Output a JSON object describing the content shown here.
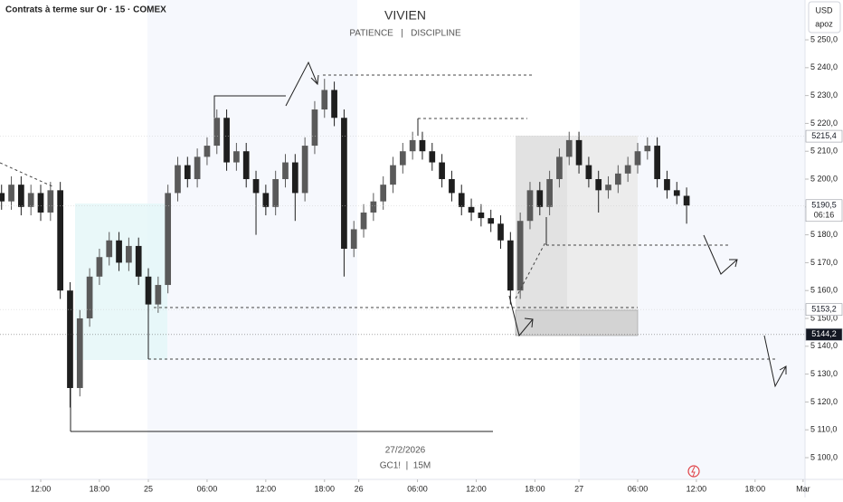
{
  "chart_data": {
    "type": "candlestick",
    "symbol_title": "Contrats à terme sur Or · 15 · COMEX",
    "title": "VIVIEN",
    "subtitle": "PATIENCE   |   DISCIPLINE",
    "date_label": "27/2/2026",
    "ticker_label": "GC1!  |  15M",
    "currency": "USD",
    "user": "apoz",
    "up_color": "#5a5a5a",
    "down_color": "#1e1e1e",
    "ylim": [
      5092.2,
      5264.3
    ],
    "xlim": [
      -0.16,
      82.1
    ],
    "yticks": [
      {
        "value": 5100,
        "label": "5 100,0"
      },
      {
        "value": 5110,
        "label": "5 110,0"
      },
      {
        "value": 5120,
        "label": "5 120,0"
      },
      {
        "value": 5130,
        "label": "5 130,0"
      },
      {
        "value": 5140,
        "label": "5 140,0"
      },
      {
        "value": 5150,
        "label": "5 150,0"
      },
      {
        "value": 5160,
        "label": "5 160,0"
      },
      {
        "value": 5170,
        "label": "5 170,0"
      },
      {
        "value": 5180,
        "label": "5 180,0"
      },
      {
        "value": 5190,
        "label": "5 190,0"
      },
      {
        "value": 5200,
        "label": "5 200,0"
      },
      {
        "value": 5210,
        "label": "5 210,0"
      },
      {
        "value": 5220,
        "label": "5 220,0"
      },
      {
        "value": 5230,
        "label": "5 230,0"
      },
      {
        "value": 5240,
        "label": "5 240,0"
      },
      {
        "value": 5250,
        "label": "5 250,0"
      }
    ],
    "xticks": [
      {
        "value": 4,
        "label": "12:00"
      },
      {
        "value": 10,
        "label": "18:00"
      },
      {
        "value": 15,
        "label": "25"
      },
      {
        "value": 21,
        "label": "06:00"
      },
      {
        "value": 27,
        "label": "12:00"
      },
      {
        "value": 33,
        "label": "18:00"
      },
      {
        "value": 36.5,
        "label": "26"
      },
      {
        "value": 42.5,
        "label": "06:00"
      },
      {
        "value": 48.5,
        "label": "12:00"
      },
      {
        "value": 54.5,
        "label": "18:00"
      },
      {
        "value": 59,
        "label": "27"
      },
      {
        "value": 65,
        "label": "06:00"
      },
      {
        "value": 71,
        "label": "12:00"
      },
      {
        "value": 77,
        "label": "18:00"
      },
      {
        "value": 81.9,
        "label": "Mar"
      }
    ],
    "price_labels": [
      {
        "value": 5215.4,
        "label": "5215,4",
        "dark": false
      },
      {
        "value": 5190.5,
        "label": "5190,5",
        "sublabel": "06:16",
        "dark": false
      },
      {
        "value": 5153.2,
        "label": "5153,2",
        "dark": false
      },
      {
        "value": 5144.2,
        "label": "5144,2",
        "dark": true
      }
    ],
    "x": [
      0,
      1,
      2,
      3,
      4,
      5,
      6,
      7,
      8,
      9,
      10,
      11,
      12,
      13,
      14,
      15,
      16,
      17,
      18,
      19,
      20,
      21,
      22,
      23,
      24,
      25,
      26,
      27,
      28,
      29,
      30,
      31,
      32,
      33,
      34,
      35,
      36,
      37,
      38,
      39,
      40,
      41,
      42,
      43,
      44,
      45,
      46,
      47,
      48,
      49,
      50,
      51,
      52,
      53,
      54,
      55,
      56,
      57,
      58,
      59,
      60,
      61,
      62,
      63,
      64,
      65,
      66,
      67,
      68,
      69,
      70
    ],
    "opens": [
      5195,
      5192,
      5198,
      5190,
      5195,
      5188,
      5196,
      5160,
      5125,
      5150,
      5165,
      5172,
      5178,
      5170,
      5176,
      5165,
      5155,
      5162,
      5195,
      5205,
      5200,
      5208,
      5212,
      5222,
      5206,
      5210,
      5200,
      5195,
      5190,
      5200,
      5206,
      5195,
      5212,
      5225,
      5232,
      5222,
      5175,
      5182,
      5188,
      5192,
      5198,
      5205,
      5210,
      5214,
      5210,
      5206,
      5200,
      5195,
      5190,
      5188,
      5186,
      5184,
      5178,
      5160,
      5185,
      5196,
      5190,
      5200,
      5208,
      5214,
      5205,
      5200,
      5196,
      5198,
      5202,
      5205,
      5210,
      5212,
      5200,
      5196,
      5194
    ],
    "highs": [
      5198,
      5201,
      5201,
      5198,
      5198,
      5199,
      5199,
      5163,
      5153,
      5168,
      5175,
      5181,
      5181,
      5179,
      5179,
      5168,
      5165,
      5198,
      5208,
      5208,
      5211,
      5215,
      5225,
      5225,
      5213,
      5213,
      5203,
      5198,
      5203,
      5209,
      5209,
      5215,
      5228,
      5236,
      5235,
      5225,
      5185,
      5191,
      5195,
      5201,
      5208,
      5213,
      5217,
      5217,
      5213,
      5209,
      5203,
      5198,
      5193,
      5191,
      5189,
      5187,
      5181,
      5188,
      5199,
      5199,
      5203,
      5211,
      5217,
      5217,
      5208,
      5203,
      5201,
      5205,
      5208,
      5213,
      5215,
      5215,
      5203,
      5199,
      5197
    ],
    "lows": [
      5189,
      5189,
      5187,
      5187,
      5185,
      5185,
      5157,
      5118,
      5122,
      5147,
      5162,
      5169,
      5167,
      5167,
      5162,
      5152,
      5152,
      5159,
      5192,
      5197,
      5197,
      5205,
      5209,
      5203,
      5203,
      5197,
      5180,
      5187,
      5187,
      5197,
      5185,
      5192,
      5209,
      5222,
      5219,
      5165,
      5172,
      5179,
      5185,
      5189,
      5195,
      5202,
      5207,
      5207,
      5203,
      5197,
      5192,
      5187,
      5185,
      5183,
      5181,
      5175,
      5155,
      5157,
      5182,
      5187,
      5187,
      5197,
      5205,
      5202,
      5197,
      5188,
      5193,
      5195,
      5199,
      5202,
      5207,
      5197,
      5193,
      5191,
      5184
    ],
    "closes": [
      5192,
      5198,
      5190,
      5195,
      5188,
      5196,
      5160,
      5125,
      5150,
      5165,
      5172,
      5178,
      5170,
      5176,
      5165,
      5155,
      5162,
      5195,
      5205,
      5200,
      5208,
      5212,
      5222,
      5206,
      5210,
      5200,
      5195,
      5190,
      5200,
      5206,
      5195,
      5212,
      5225,
      5232,
      5222,
      5175,
      5182,
      5188,
      5192,
      5198,
      5205,
      5210,
      5214,
      5210,
      5206,
      5200,
      5195,
      5190,
      5188,
      5186,
      5184,
      5178,
      5160,
      5185,
      5196,
      5190,
      5200,
      5208,
      5214,
      5205,
      5200,
      5196,
      5198,
      5202,
      5205,
      5210,
      5212,
      5200,
      5196,
      5194,
      5190.5
    ]
  }
}
